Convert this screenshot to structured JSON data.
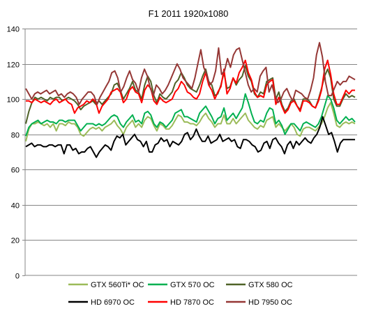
{
  "chart_data": {
    "type": "line",
    "title": "F1 2011 1920x1080",
    "xlabel": "",
    "ylabel": "",
    "ylim": [
      0,
      140
    ],
    "yticks": [
      0,
      20,
      40,
      60,
      80,
      100,
      120,
      140
    ],
    "grid": true,
    "legend_position": "bottom",
    "x_ticks_shown": false,
    "series": [
      {
        "name": "GTX 560Ti* OC",
        "color": "#9bbb59",
        "values": [
          76,
          83,
          86,
          86,
          87,
          86,
          85,
          86,
          84,
          86,
          82,
          86,
          86,
          85,
          87,
          86,
          86,
          84,
          80,
          79,
          81,
          83,
          84,
          83,
          84,
          82,
          84,
          85,
          86,
          88,
          85,
          83,
          80,
          84,
          86,
          88,
          84,
          86,
          84,
          88,
          90,
          89,
          85,
          82,
          86,
          85,
          83,
          83,
          85,
          88,
          91,
          90,
          87,
          87,
          86,
          86,
          85,
          87,
          90,
          92,
          89,
          87,
          84,
          86,
          86,
          91,
          86,
          86,
          89,
          86,
          88,
          90,
          92,
          88,
          86,
          84,
          83,
          85,
          84,
          88,
          89,
          90,
          84,
          86,
          84,
          82,
          84,
          86,
          84,
          80,
          79,
          83,
          84,
          84,
          83,
          82,
          84,
          86,
          90,
          95,
          98,
          92,
          85,
          84,
          86,
          87,
          86,
          87,
          86
        ]
      },
      {
        "name": "GTX 570 OC",
        "color": "#00b050",
        "values": [
          79,
          84,
          86,
          87,
          88,
          86,
          87,
          88,
          87,
          87,
          86,
          88,
          88,
          87,
          88,
          88,
          88,
          85,
          82,
          84,
          86,
          86,
          86,
          85,
          86,
          85,
          86,
          88,
          90,
          91,
          90,
          86,
          84,
          87,
          89,
          91,
          87,
          88,
          86,
          92,
          93,
          91,
          86,
          84,
          87,
          86,
          84,
          86,
          88,
          92,
          93,
          94,
          90,
          90,
          89,
          88,
          87,
          92,
          94,
          96,
          93,
          90,
          86,
          89,
          90,
          95,
          88,
          90,
          92,
          89,
          92,
          95,
          103,
          98,
          92,
          87,
          86,
          88,
          87,
          92,
          95,
          94,
          86,
          88,
          85,
          80,
          83,
          86,
          86,
          84,
          82,
          86,
          87,
          86,
          85,
          84,
          86,
          90,
          96,
          102,
          100,
          95,
          88,
          86,
          88,
          90,
          88,
          89,
          87
        ]
      },
      {
        "name": "GTX 580 OC",
        "color": "#4f6228",
        "values": [
          86,
          93,
          98,
          101,
          100,
          101,
          100,
          99,
          101,
          100,
          101,
          101,
          99,
          100,
          101,
          100,
          99,
          97,
          94,
          96,
          97,
          98,
          99,
          97,
          99,
          97,
          99,
          101,
          103,
          108,
          109,
          105,
          100,
          103,
          106,
          110,
          105,
          104,
          100,
          108,
          113,
          110,
          102,
          98,
          103,
          101,
          100,
          102,
          104,
          109,
          111,
          115,
          112,
          108,
          106,
          105,
          104,
          108,
          113,
          117,
          110,
          108,
          102,
          103,
          108,
          115,
          106,
          107,
          112,
          108,
          111,
          113,
          119,
          113,
          110,
          103,
          101,
          104,
          103,
          110,
          111,
          112,
          100,
          104,
          97,
          93,
          95,
          99,
          100,
          96,
          94,
          100,
          100,
          99,
          96,
          95,
          100,
          106,
          113,
          117,
          112,
          100,
          96,
          96,
          100,
          103,
          101,
          102,
          101
        ]
      },
      {
        "name": "HD 6970 OC",
        "color": "#000000",
        "values": [
          73,
          74,
          75,
          73,
          74,
          74,
          73,
          73,
          74,
          74,
          73,
          74,
          74,
          69,
          74,
          74,
          71,
          72,
          69,
          70,
          70,
          72,
          73,
          70,
          67,
          70,
          72,
          74,
          73,
          71,
          76,
          79,
          78,
          80,
          74,
          76,
          78,
          80,
          77,
          76,
          73,
          76,
          70,
          70,
          74,
          75,
          78,
          76,
          77,
          73,
          76,
          75,
          74,
          76,
          80,
          81,
          77,
          79,
          83,
          79,
          76,
          76,
          79,
          75,
          76,
          77,
          80,
          76,
          77,
          78,
          76,
          77,
          73,
          72,
          77,
          77,
          76,
          74,
          73,
          70,
          71,
          75,
          76,
          72,
          77,
          78,
          75,
          73,
          69,
          74,
          76,
          72,
          76,
          74,
          76,
          78,
          76,
          75,
          78,
          80,
          84,
          90,
          85,
          80,
          81,
          76,
          70,
          75,
          77,
          77,
          77,
          77,
          77
        ]
      },
      {
        "name": "HD 7870 OC",
        "color": "#ff0000",
        "values": [
          99,
          99,
          98,
          100,
          99,
          98,
          99,
          98,
          97,
          99,
          100,
          98,
          99,
          100,
          98,
          97,
          92,
          95,
          96,
          97,
          99,
          98,
          100,
          98,
          92,
          96,
          98,
          100,
          104,
          105,
          106,
          104,
          98,
          100,
          105,
          107,
          104,
          103,
          98,
          105,
          108,
          106,
          99,
          97,
          101,
          99,
          98,
          99,
          100,
          104,
          106,
          110,
          108,
          104,
          103,
          101,
          100,
          103,
          110,
          115,
          108,
          105,
          100,
          104,
          107,
          117,
          103,
          106,
          112,
          109,
          115,
          118,
          122,
          115,
          111,
          104,
          101,
          102,
          101,
          108,
          110,
          111,
          97,
          101,
          96,
          92,
          94,
          98,
          99,
          96,
          93,
          99,
          99,
          98,
          96,
          95,
          99,
          105,
          117,
          122,
          114,
          103,
          97,
          97,
          101,
          105,
          103,
          105,
          105
        ]
      },
      {
        "name": "HD 7950 OC",
        "color": "#953735",
        "values": [
          106,
          103,
          100,
          103,
          104,
          103,
          104,
          105,
          103,
          104,
          105,
          102,
          103,
          101,
          103,
          104,
          103,
          101,
          97,
          100,
          102,
          104,
          104,
          102,
          97,
          101,
          104,
          107,
          110,
          115,
          116,
          112,
          104,
          107,
          112,
          116,
          111,
          109,
          104,
          112,
          117,
          113,
          106,
          102,
          108,
          106,
          103,
          105,
          108,
          112,
          116,
          120,
          117,
          112,
          110,
          108,
          106,
          112,
          120,
          128,
          118,
          114,
          108,
          110,
          116,
          129,
          114,
          116,
          123,
          118,
          125,
          128,
          129,
          122,
          115,
          108,
          104,
          106,
          104,
          113,
          116,
          118,
          104,
          108,
          102,
          98,
          100,
          104,
          106,
          102,
          99,
          105,
          104,
          103,
          101,
          100,
          105,
          112,
          125,
          132,
          124,
          110,
          102,
          102,
          106,
          110,
          108,
          110,
          110,
          113,
          112,
          111
        ]
      }
    ]
  }
}
